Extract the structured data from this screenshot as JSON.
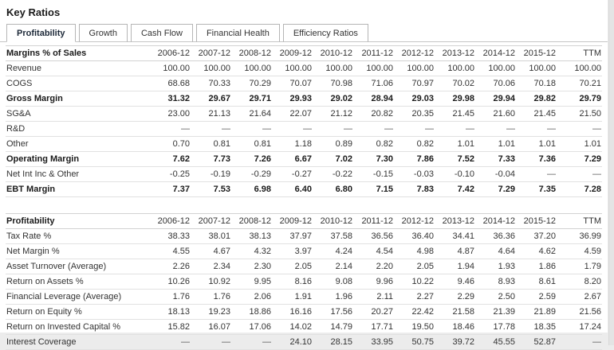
{
  "page": {
    "title": "Key Ratios"
  },
  "tabs": [
    {
      "label": "Profitability",
      "active": true
    },
    {
      "label": "Growth",
      "active": false
    },
    {
      "label": "Cash Flow",
      "active": false
    },
    {
      "label": "Financial Health",
      "active": false
    },
    {
      "label": "Efficiency Ratios",
      "active": false
    }
  ],
  "table": {
    "columns": [
      "2006-12",
      "2007-12",
      "2008-12",
      "2009-12",
      "2010-12",
      "2011-12",
      "2012-12",
      "2013-12",
      "2014-12",
      "2015-12",
      "TTM"
    ],
    "sections": [
      {
        "header": "Margins % of Sales",
        "rows": [
          {
            "label": "Revenue",
            "bold": false,
            "values": [
              "100.00",
              "100.00",
              "100.00",
              "100.00",
              "100.00",
              "100.00",
              "100.00",
              "100.00",
              "100.00",
              "100.00",
              "100.00"
            ]
          },
          {
            "label": "COGS",
            "bold": false,
            "values": [
              "68.68",
              "70.33",
              "70.29",
              "70.07",
              "70.98",
              "71.06",
              "70.97",
              "70.02",
              "70.06",
              "70.18",
              "70.21"
            ]
          },
          {
            "label": "Gross Margin",
            "bold": true,
            "values": [
              "31.32",
              "29.67",
              "29.71",
              "29.93",
              "29.02",
              "28.94",
              "29.03",
              "29.98",
              "29.94",
              "29.82",
              "29.79"
            ]
          },
          {
            "label": "SG&A",
            "bold": false,
            "values": [
              "23.00",
              "21.13",
              "21.64",
              "22.07",
              "21.12",
              "20.82",
              "20.35",
              "21.45",
              "21.60",
              "21.45",
              "21.50"
            ]
          },
          {
            "label": "R&D",
            "bold": false,
            "values": [
              "—",
              "—",
              "—",
              "—",
              "—",
              "—",
              "—",
              "—",
              "—",
              "—",
              "—"
            ]
          },
          {
            "label": "Other",
            "bold": false,
            "values": [
              "0.70",
              "0.81",
              "0.81",
              "1.18",
              "0.89",
              "0.82",
              "0.82",
              "1.01",
              "1.01",
              "1.01",
              "1.01"
            ]
          },
          {
            "label": "Operating Margin",
            "bold": true,
            "values": [
              "7.62",
              "7.73",
              "7.26",
              "6.67",
              "7.02",
              "7.30",
              "7.86",
              "7.52",
              "7.33",
              "7.36",
              "7.29"
            ]
          },
          {
            "label": "Net Int Inc & Other",
            "bold": false,
            "values": [
              "-0.25",
              "-0.19",
              "-0.29",
              "-0.27",
              "-0.22",
              "-0.15",
              "-0.03",
              "-0.10",
              "-0.04",
              "—",
              "—"
            ]
          },
          {
            "label": "EBT Margin",
            "bold": true,
            "values": [
              "7.37",
              "7.53",
              "6.98",
              "6.40",
              "6.80",
              "7.15",
              "7.83",
              "7.42",
              "7.29",
              "7.35",
              "7.28"
            ]
          }
        ]
      },
      {
        "header": "Profitability",
        "rows": [
          {
            "label": "Tax Rate %",
            "bold": false,
            "values": [
              "38.33",
              "38.01",
              "38.13",
              "37.97",
              "37.58",
              "36.56",
              "36.40",
              "34.41",
              "36.36",
              "37.20",
              "36.99"
            ]
          },
          {
            "label": "Net Margin %",
            "bold": false,
            "values": [
              "4.55",
              "4.67",
              "4.32",
              "3.97",
              "4.24",
              "4.54",
              "4.98",
              "4.87",
              "4.64",
              "4.62",
              "4.59"
            ]
          },
          {
            "label": "Asset Turnover (Average)",
            "bold": false,
            "values": [
              "2.26",
              "2.34",
              "2.30",
              "2.05",
              "2.14",
              "2.20",
              "2.05",
              "1.94",
              "1.93",
              "1.86",
              "1.79"
            ]
          },
          {
            "label": "Return on Assets %",
            "bold": false,
            "values": [
              "10.26",
              "10.92",
              "9.95",
              "8.16",
              "9.08",
              "9.96",
              "10.22",
              "9.46",
              "8.93",
              "8.61",
              "8.20"
            ]
          },
          {
            "label": "Financial Leverage (Average)",
            "bold": false,
            "values": [
              "1.76",
              "1.76",
              "2.06",
              "1.91",
              "1.96",
              "2.11",
              "2.27",
              "2.29",
              "2.50",
              "2.59",
              "2.67"
            ]
          },
          {
            "label": "Return on Equity %",
            "bold": false,
            "values": [
              "18.13",
              "19.23",
              "18.86",
              "16.16",
              "17.56",
              "20.27",
              "22.42",
              "21.58",
              "21.39",
              "21.89",
              "21.56"
            ]
          },
          {
            "label": "Return on Invested Capital %",
            "bold": false,
            "values": [
              "15.82",
              "16.07",
              "17.06",
              "14.02",
              "14.79",
              "17.71",
              "19.50",
              "18.46",
              "17.78",
              "18.35",
              "17.24"
            ]
          },
          {
            "label": "Interest Coverage",
            "bold": false,
            "values": [
              "—",
              "—",
              "—",
              "24.10",
              "28.15",
              "33.95",
              "50.75",
              "39.72",
              "45.55",
              "52.87",
              "—"
            ]
          }
        ]
      }
    ]
  }
}
